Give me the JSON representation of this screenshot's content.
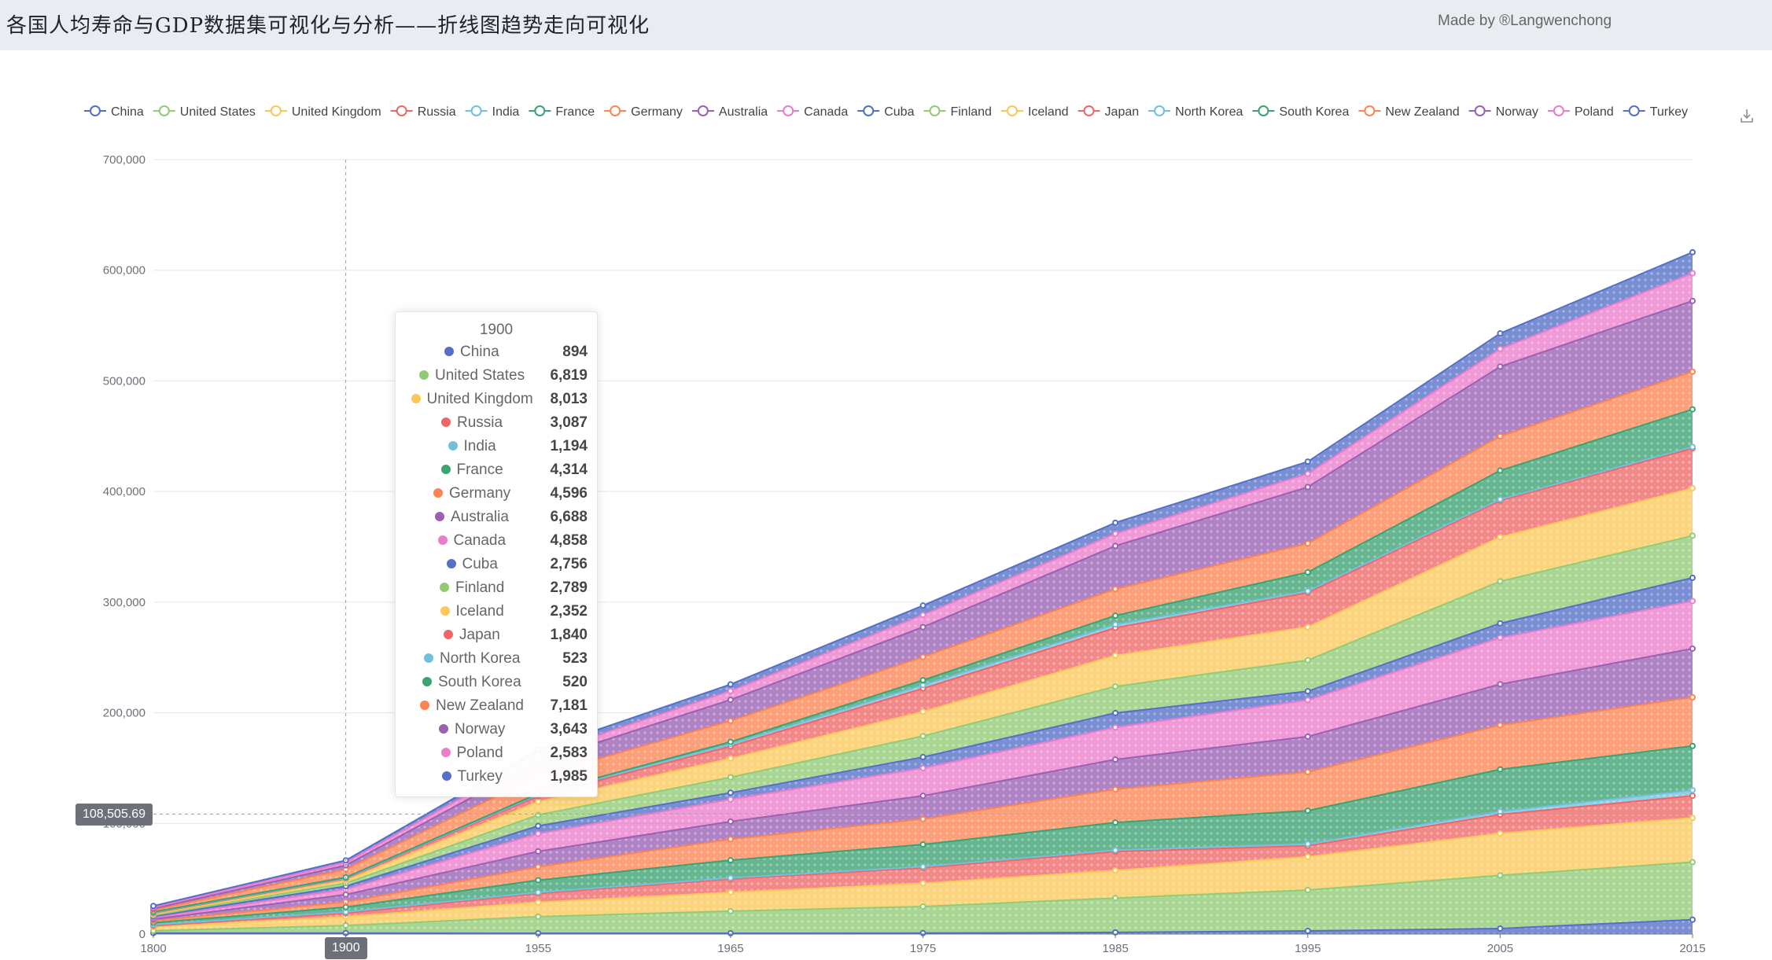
{
  "header": {
    "title": "各国人均寿命与GDP数据集可视化与分析——折线图趋势走向可视化",
    "credit": "Made by ®Langwenchong"
  },
  "chart_data": {
    "type": "area",
    "stacked": true,
    "x": [
      "1800",
      "1900",
      "1955",
      "1965",
      "1975",
      "1985",
      "1995",
      "2005",
      "2015"
    ],
    "ylim": [
      0,
      700000
    ],
    "yticks": [
      "0",
      "100,000",
      "200,000",
      "300,000",
      "400,000",
      "500,000",
      "600,000",
      "700,000"
    ],
    "grid": true,
    "legend_position": "top",
    "series": [
      {
        "name": "China",
        "color": "#5470c6",
        "values": [
          900,
          894,
          700,
          700,
          850,
          1500,
          2800,
          5000,
          13000
        ]
      },
      {
        "name": "United States",
        "color": "#91cc75",
        "values": [
          2100,
          6819,
          15000,
          20000,
          24000,
          31000,
          37000,
          48000,
          52000
        ]
      },
      {
        "name": "United Kingdom",
        "color": "#fac858",
        "values": [
          3400,
          8013,
          13000,
          17000,
          21000,
          25000,
          30000,
          38000,
          40000
        ]
      },
      {
        "name": "Russia",
        "color": "#ee6666",
        "values": [
          1100,
          3087,
          8000,
          12000,
          14000,
          17000,
          10000,
          17000,
          20000
        ]
      },
      {
        "name": "India",
        "color": "#73c0de",
        "values": [
          900,
          1194,
          1000,
          1000,
          1100,
          1300,
          1700,
          2800,
          5000
        ]
      },
      {
        "name": "France",
        "color": "#3ba272",
        "values": [
          1800,
          4314,
          11000,
          16000,
          20000,
          25000,
          30000,
          38000,
          40000
        ]
      },
      {
        "name": "Germany",
        "color": "#fc8452",
        "values": [
          1700,
          4596,
          12000,
          19000,
          23000,
          30000,
          35000,
          40000,
          44000
        ]
      },
      {
        "name": "Australia",
        "color": "#9a60b4",
        "values": [
          1500,
          6688,
          14000,
          16000,
          21000,
          27000,
          32000,
          37000,
          44000
        ]
      },
      {
        "name": "Canada",
        "color": "#ea7ccc",
        "values": [
          1400,
          4858,
          16000,
          20000,
          25000,
          29000,
          33000,
          42000,
          43000
        ]
      },
      {
        "name": "Cuba",
        "color": "#5470c6",
        "values": [
          1200,
          2756,
          7000,
          6000,
          10000,
          13000,
          8000,
          13000,
          21000
        ]
      },
      {
        "name": "Finland",
        "color": "#91cc75",
        "values": [
          1000,
          2789,
          10000,
          14000,
          19000,
          24000,
          28000,
          38000,
          38000
        ]
      },
      {
        "name": "Iceland",
        "color": "#fac858",
        "values": [
          1000,
          2352,
          12000,
          17000,
          22000,
          28000,
          30000,
          40000,
          43000
        ]
      },
      {
        "name": "Japan",
        "color": "#ee6666",
        "values": [
          1000,
          1840,
          5000,
          11000,
          21000,
          25000,
          31000,
          33000,
          36000
        ]
      },
      {
        "name": "North Korea",
        "color": "#73c0de",
        "values": [
          500,
          523,
          1200,
          2000,
          3000,
          3000,
          1500,
          1100,
          1300
        ]
      },
      {
        "name": "South Korea",
        "color": "#3ba272",
        "values": [
          500,
          520,
          1000,
          2000,
          4500,
          8000,
          17000,
          26000,
          34000
        ]
      },
      {
        "name": "New Zealand",
        "color": "#fc8452",
        "values": [
          1700,
          7181,
          16000,
          19000,
          21000,
          24000,
          26000,
          31000,
          34000
        ]
      },
      {
        "name": "Norway",
        "color": "#9a60b4",
        "values": [
          1300,
          3643,
          13000,
          19000,
          27000,
          39000,
          51000,
          63000,
          64000
        ]
      },
      {
        "name": "Poland",
        "color": "#ea7ccc",
        "values": [
          1100,
          2583,
          6000,
          8000,
          11000,
          11000,
          12000,
          16000,
          25000
        ]
      },
      {
        "name": "Turkey",
        "color": "#5470c6",
        "values": [
          1300,
          1985,
          4500,
          6000,
          8500,
          10000,
          11000,
          14000,
          19000
        ]
      }
    ]
  },
  "tooltip": {
    "title": "1900",
    "rows": [
      {
        "name": "China",
        "value": "894",
        "color": "#5470c6"
      },
      {
        "name": "United States",
        "value": "6,819",
        "color": "#91cc75"
      },
      {
        "name": "United Kingdom",
        "value": "8,013",
        "color": "#fac858"
      },
      {
        "name": "Russia",
        "value": "3,087",
        "color": "#ee6666"
      },
      {
        "name": "India",
        "value": "1,194",
        "color": "#73c0de"
      },
      {
        "name": "France",
        "value": "4,314",
        "color": "#3ba272"
      },
      {
        "name": "Germany",
        "value": "4,596",
        "color": "#fc8452"
      },
      {
        "name": "Australia",
        "value": "6,688",
        "color": "#9a60b4"
      },
      {
        "name": "Canada",
        "value": "4,858",
        "color": "#ea7ccc"
      },
      {
        "name": "Cuba",
        "value": "2,756",
        "color": "#5470c6"
      },
      {
        "name": "Finland",
        "value": "2,789",
        "color": "#91cc75"
      },
      {
        "name": "Iceland",
        "value": "2,352",
        "color": "#fac858"
      },
      {
        "name": "Japan",
        "value": "1,840",
        "color": "#ee6666"
      },
      {
        "name": "North Korea",
        "value": "523",
        "color": "#73c0de"
      },
      {
        "name": "South Korea",
        "value": "520",
        "color": "#3ba272"
      },
      {
        "name": "New Zealand",
        "value": "7,181",
        "color": "#fc8452"
      },
      {
        "name": "Norway",
        "value": "3,643",
        "color": "#9a60b4"
      },
      {
        "name": "Poland",
        "value": "2,583",
        "color": "#ea7ccc"
      },
      {
        "name": "Turkey",
        "value": "1,985",
        "color": "#5470c6"
      }
    ]
  },
  "axis_pointer": {
    "y_value": "108,505.69",
    "x_value": "1900"
  },
  "toolbox": {
    "icon": "download-icon"
  }
}
